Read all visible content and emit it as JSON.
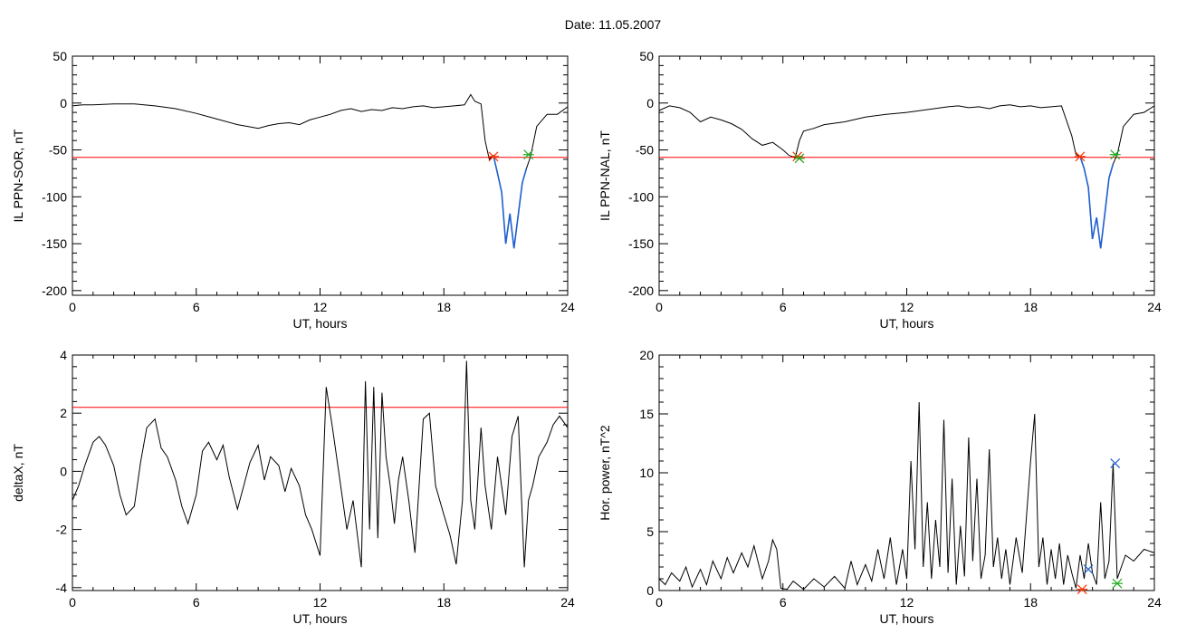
{
  "title": "Date:  11.05.2007",
  "colors": {
    "trace": "#000000",
    "threshold": "#ff0000",
    "highlight": "#1f5fd0",
    "marker_onset": "#ff3300",
    "marker_end": "#22aa22",
    "marker_power": "#1f5fd0"
  },
  "chart_data": [
    {
      "type": "line",
      "name": "panel-top-left",
      "xlabel": "UT, hours",
      "ylabel": "IL PPN-SOR, nT",
      "xlim": [
        0,
        24
      ],
      "ylim": [
        -205,
        50
      ],
      "xticks": [
        0,
        6,
        12,
        18,
        24
      ],
      "xtick_labels": [
        "0",
        "6",
        "12",
        "18",
        "24"
      ],
      "yticks": [
        50,
        0,
        -50,
        -100,
        -150,
        -200
      ],
      "ytick_labels": [
        "50",
        "0",
        "-50",
        "-100",
        "-150",
        "-200"
      ],
      "threshold": -58,
      "series": [
        {
          "x": [
            0,
            0.5,
            1,
            2,
            3,
            4,
            5,
            6,
            7,
            8,
            8.5,
            9,
            9.5,
            10,
            10.5,
            11,
            11.5,
            12,
            12.5,
            13,
            13.5,
            14,
            14.5,
            15,
            15.5,
            16,
            16.5,
            17,
            17.5,
            18,
            18.5,
            19,
            19.3,
            19.5,
            19.8,
            20,
            20.2,
            20.4,
            20.6,
            20.8,
            21,
            21.2,
            21.4,
            21.6,
            21.8,
            22,
            22.2,
            22.5,
            23,
            23.5,
            24
          ],
          "y": [
            -3,
            -2,
            -2,
            -1,
            -1,
            -3,
            -6,
            -11,
            -17,
            -23,
            -25,
            -27,
            -24,
            -22,
            -21,
            -23,
            -18,
            -15,
            -12,
            -8,
            -6,
            -9,
            -7,
            -8,
            -5,
            -6,
            -4,
            -3,
            -5,
            -4,
            -3,
            -2,
            9,
            2,
            -1,
            -40,
            -60,
            -56,
            -75,
            -95,
            -150,
            -118,
            -155,
            -120,
            -85,
            -70,
            -57,
            -25,
            -12,
            -12,
            -4
          ]
        }
      ],
      "highlight": {
        "x_range": [
          20.4,
          22.1
        ]
      },
      "markers": [
        {
          "x": 20.4,
          "y": -57,
          "kind": "onset"
        },
        {
          "x": 22.1,
          "y": -55,
          "kind": "end"
        }
      ]
    },
    {
      "type": "line",
      "name": "panel-top-right",
      "xlabel": "UT, hours",
      "ylabel": "IL PPN-NAL, nT",
      "xlim": [
        0,
        24
      ],
      "ylim": [
        -205,
        50
      ],
      "xticks": [
        0,
        6,
        12,
        18,
        24
      ],
      "xtick_labels": [
        "0",
        "6",
        "12",
        "18",
        "24"
      ],
      "yticks": [
        50,
        0,
        -50,
        -100,
        -150,
        -200
      ],
      "ytick_labels": [
        "50",
        "0",
        "-50",
        "-100",
        "-150",
        "-200"
      ],
      "threshold": -58,
      "series": [
        {
          "x": [
            0,
            0.5,
            1,
            1.5,
            2,
            2.5,
            3,
            3.5,
            4,
            4.5,
            5,
            5.5,
            6,
            6.3,
            6.6,
            6.8,
            7,
            7.5,
            8,
            9,
            10,
            11,
            12,
            13,
            14,
            14.5,
            15,
            15.5,
            16,
            16.5,
            17,
            17.5,
            18,
            18.5,
            19,
            19.5,
            20,
            20.2,
            20.4,
            20.6,
            20.8,
            21,
            21.2,
            21.4,
            21.6,
            21.8,
            22,
            22.2,
            22.5,
            23,
            23.5,
            24
          ],
          "y": [
            -8,
            -3,
            -5,
            -10,
            -20,
            -15,
            -18,
            -22,
            -28,
            -38,
            -45,
            -42,
            -50,
            -56,
            -58,
            -40,
            -30,
            -27,
            -23,
            -20,
            -15,
            -12,
            -10,
            -7,
            -4,
            -3,
            -5,
            -4,
            -6,
            -3,
            -2,
            -4,
            -3,
            -5,
            -4,
            -3,
            -35,
            -55,
            -57,
            -70,
            -90,
            -145,
            -122,
            -155,
            -118,
            -80,
            -65,
            -55,
            -25,
            -12,
            -10,
            -3
          ]
        }
      ],
      "highlight": {
        "x_range": [
          20.4,
          22.1
        ]
      },
      "markers": [
        {
          "x": 6.7,
          "y": -57,
          "kind": "onset"
        },
        {
          "x": 6.8,
          "y": -59,
          "kind": "end"
        },
        {
          "x": 20.4,
          "y": -57,
          "kind": "onset"
        },
        {
          "x": 22.1,
          "y": -55,
          "kind": "end"
        }
      ]
    },
    {
      "type": "line",
      "name": "panel-bottom-left",
      "xlabel": "UT, hours",
      "ylabel": "deltaX, nT",
      "xlim": [
        0,
        24
      ],
      "ylim": [
        -4.1,
        4
      ],
      "xticks": [
        0,
        6,
        12,
        18,
        24
      ],
      "xtick_labels": [
        "0",
        "6",
        "12",
        "18",
        "24"
      ],
      "yticks": [
        4,
        2,
        0,
        -2,
        -4
      ],
      "ytick_labels": [
        "4",
        "2",
        "0",
        "-2",
        "-4"
      ],
      "threshold": 2.2,
      "series": [
        {
          "x": [
            0,
            0.3,
            0.6,
            1,
            1.3,
            1.6,
            2,
            2.3,
            2.6,
            3,
            3.3,
            3.6,
            4,
            4.3,
            4.6,
            5,
            5.3,
            5.6,
            6,
            6.3,
            6.6,
            7,
            7.3,
            7.6,
            8,
            8.3,
            8.6,
            9,
            9.3,
            9.6,
            10,
            10.3,
            10.6,
            11,
            11.3,
            11.6,
            12,
            12.3,
            12.6,
            13,
            13.3,
            13.6,
            14,
            14.2,
            14.4,
            14.6,
            14.8,
            15,
            15.2,
            15.4,
            15.6,
            15.8,
            16,
            16.3,
            16.6,
            17,
            17.3,
            17.6,
            18,
            18.3,
            18.6,
            18.9,
            19.1,
            19.3,
            19.5,
            19.8,
            20,
            20.3,
            20.6,
            21,
            21.3,
            21.6,
            21.9,
            22.1,
            22.3,
            22.6,
            23,
            23.3,
            23.6,
            24
          ],
          "y": [
            -1,
            -0.5,
            0.2,
            1,
            1.2,
            0.9,
            0.2,
            -0.8,
            -1.5,
            -1.2,
            0.3,
            1.5,
            1.8,
            0.8,
            0.5,
            -0.3,
            -1.2,
            -1.8,
            -0.8,
            0.7,
            1.0,
            0.4,
            0.9,
            -0.2,
            -1.3,
            -0.5,
            0.3,
            0.9,
            -0.3,
            0.5,
            0.2,
            -0.7,
            0.1,
            -0.5,
            -1.5,
            -2.0,
            -2.9,
            2.9,
            1.5,
            -0.5,
            -2.0,
            -1.0,
            -3.3,
            3.1,
            -2.0,
            2.9,
            -2.3,
            2.7,
            0.5,
            -0.5,
            -1.8,
            -0.3,
            0.5,
            -1.0,
            -2.8,
            1.8,
            2.0,
            -0.5,
            -1.5,
            -2.2,
            -3.2,
            -1.0,
            3.8,
            -1.0,
            -2.0,
            1.5,
            -0.5,
            -2.0,
            0.5,
            -1.5,
            1.2,
            1.9,
            -3.3,
            -1.0,
            -0.5,
            0.5,
            1.0,
            1.6,
            1.9,
            1.5
          ]
        }
      ],
      "markers": []
    },
    {
      "type": "line",
      "name": "panel-bottom-right",
      "xlabel": "UT, hours",
      "ylabel": "Hor. power, nT^2",
      "xlim": [
        0,
        24
      ],
      "ylim": [
        0,
        20
      ],
      "xticks": [
        0,
        6,
        12,
        18,
        24
      ],
      "xtick_labels": [
        "0",
        "6",
        "12",
        "18",
        "24"
      ],
      "yticks": [
        20,
        15,
        10,
        5,
        0
      ],
      "ytick_labels": [
        "20",
        "15",
        "10",
        "5",
        "0"
      ],
      "series": [
        {
          "x": [
            0,
            0.3,
            0.6,
            1,
            1.3,
            1.6,
            2,
            2.3,
            2.6,
            3,
            3.3,
            3.6,
            4,
            4.3,
            4.6,
            5,
            5.3,
            5.5,
            5.7,
            5.9,
            6.2,
            6.5,
            7,
            7.5,
            8,
            8.5,
            9,
            9.3,
            9.6,
            10,
            10.3,
            10.6,
            10.9,
            11.2,
            11.5,
            11.8,
            12,
            12.2,
            12.4,
            12.6,
            12.8,
            13,
            13.2,
            13.4,
            13.6,
            13.8,
            14,
            14.2,
            14.4,
            14.6,
            14.8,
            15,
            15.2,
            15.4,
            15.6,
            15.8,
            16,
            16.2,
            16.4,
            16.6,
            16.8,
            17,
            17.3,
            17.6,
            18,
            18.2,
            18.4,
            18.6,
            18.8,
            19,
            19.2,
            19.4,
            19.6,
            19.8,
            20,
            20.2,
            20.4,
            20.6,
            20.8,
            21,
            21.2,
            21.4,
            21.6,
            21.8,
            22,
            22.2,
            22.4,
            22.6,
            23,
            23.5,
            24
          ],
          "y": [
            1,
            0.5,
            1.5,
            0.8,
            2.0,
            0.3,
            1.8,
            0.5,
            2.5,
            1.0,
            2.8,
            1.5,
            3.2,
            2.0,
            3.8,
            1.0,
            2.5,
            4.3,
            3.5,
            0.2,
            0.1,
            0.8,
            0.1,
            1.0,
            0.3,
            1.2,
            0.2,
            2.5,
            0.5,
            2.2,
            0.8,
            3.5,
            1.0,
            4.5,
            0.5,
            3.5,
            1.0,
            11.0,
            3.5,
            16.0,
            2.0,
            7.5,
            1.0,
            6.0,
            2.0,
            14.5,
            1.5,
            9.5,
            0.5,
            5.5,
            1.2,
            13.0,
            2.5,
            9.5,
            1.0,
            3.0,
            12.0,
            2.0,
            4.5,
            1.0,
            3.5,
            0.5,
            4.5,
            1.5,
            11.0,
            15.0,
            2.0,
            4.5,
            0.5,
            3.5,
            1.0,
            4.0,
            0.5,
            3.0,
            1.5,
            0.2,
            3.0,
            1.0,
            4.0,
            1.5,
            0.5,
            7.5,
            1.0,
            2.5,
            10.8,
            1.0,
            2.0,
            3.0,
            2.5,
            3.5,
            3.2
          ]
        }
      ],
      "markers": [
        {
          "x": 20.5,
          "y": 0.1,
          "kind": "onset"
        },
        {
          "x": 20.8,
          "y": 1.8,
          "kind": "power"
        },
        {
          "x": 22.1,
          "y": 10.8,
          "kind": "power"
        },
        {
          "x": 22.2,
          "y": 0.6,
          "kind": "end"
        }
      ]
    }
  ]
}
